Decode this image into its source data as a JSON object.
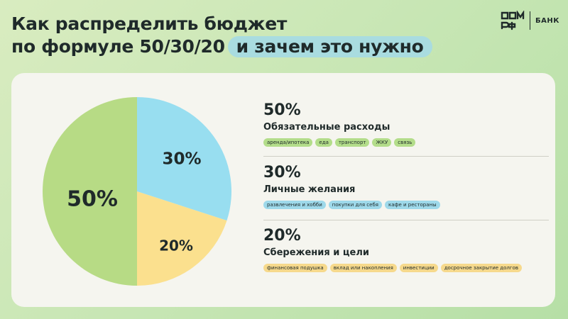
{
  "title": {
    "line1": "Как распределить бюджет",
    "line2": "по формуле 50/30/20",
    "highlight": "и зачем это нужно"
  },
  "logo": {
    "text": "БАНК",
    "icon": "dom-rf-logo"
  },
  "colors": {
    "green": "#b7db85",
    "blue": "#98def0",
    "yellow": "#fbe08e",
    "card": "#f5f5ef",
    "highlight": "#a9dce0"
  },
  "chart_data": {
    "type": "pie",
    "categories": [
      "Обязательные расходы",
      "Личные желания",
      "Сбережения и цели"
    ],
    "values": [
      50,
      30,
      20
    ],
    "labels": [
      "50%",
      "30%",
      "20%"
    ]
  },
  "sections": [
    {
      "percent": "50%",
      "name": "Обязательные расходы",
      "tags": [
        "аренда/ипотека",
        "еда",
        "транспорт",
        "ЖКУ",
        "связь"
      ]
    },
    {
      "percent": "30%",
      "name": "Личные желания",
      "tags": [
        "развлечения и хобби",
        "покупки для себя",
        "кафе и рестораны"
      ]
    },
    {
      "percent": "20%",
      "name": "Сбережения и цели",
      "tags": [
        "финансовая подушка",
        "вклад или накопления",
        "инвестиции",
        "досрочное закрытие долгов"
      ]
    }
  ]
}
